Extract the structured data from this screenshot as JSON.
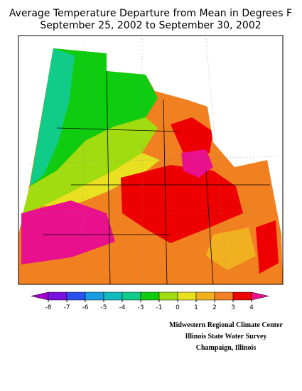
{
  "title": [
    "Average Temperature Departure from Mean in Degrees F",
    "September 25, 2002 to September 30, 2002"
  ],
  "legend": {
    "ticks": [
      -8,
      -7,
      -6,
      -5,
      -4,
      -3,
      -1,
      0,
      1,
      2,
      3,
      4
    ],
    "colors": [
      "#a000c8",
      "#7a10e0",
      "#2a50ee",
      "#1a9ae0",
      "#10bcc0",
      "#10cc88",
      "#10cc10",
      "#a0dc10",
      "#e8e020",
      "#f0b020",
      "#f08020",
      "#ee0000",
      "#e8108c"
    ]
  },
  "credits": [
    "Midwestern Regional Climate Center",
    "Illinois State Water Survey",
    "Champaign, Illinois"
  ]
}
